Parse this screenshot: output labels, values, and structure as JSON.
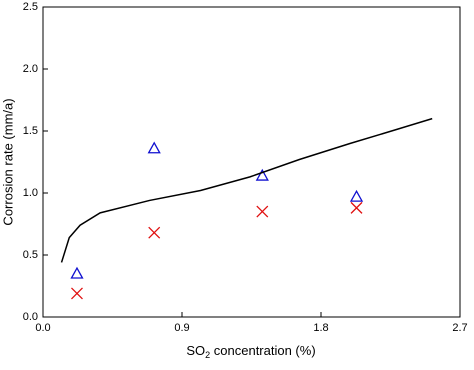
{
  "chart_data": {
    "type": "scatter",
    "xlabel": {
      "main": "SO",
      "sub": "2",
      "rest": " concentration (%)"
    },
    "ylabel": "Corrosion rate (mm/a)",
    "xlim": [
      0,
      2.7
    ],
    "xticks": [
      {
        "value": 0,
        "label": "0.0"
      },
      0.9,
      1.8,
      2.7
    ],
    "ylim": [
      0,
      2.5
    ],
    "yticks": [
      {
        "value": 0,
        "label": "0.0"
      },
      0.5,
      {
        "value": 1,
        "label": "1.0"
      },
      1.5,
      {
        "value": 2,
        "label": "2.0"
      },
      2.5
    ],
    "series": [
      {
        "marker": "triangle",
        "color": "#1010d0",
        "x": [
          0.22,
          0.72,
          1.42,
          2.03
        ],
        "values": [
          0.35,
          1.36,
          1.14,
          0.97
        ]
      },
      {
        "marker": "cross",
        "color": "#e01010",
        "x": [
          0.22,
          0.72,
          1.42,
          2.03
        ],
        "values": [
          0.19,
          0.68,
          0.85,
          0.88
        ]
      },
      {
        "marker": "line",
        "color": "#000000",
        "x": [
          0.12,
          0.17,
          0.24,
          0.37,
          0.69,
          1.02,
          1.34,
          1.66,
          1.99,
          2.31,
          2.52
        ],
        "values": [
          0.44,
          0.64,
          0.74,
          0.84,
          0.94,
          1.02,
          1.13,
          1.27,
          1.4,
          1.52,
          1.6
        ]
      }
    ]
  }
}
